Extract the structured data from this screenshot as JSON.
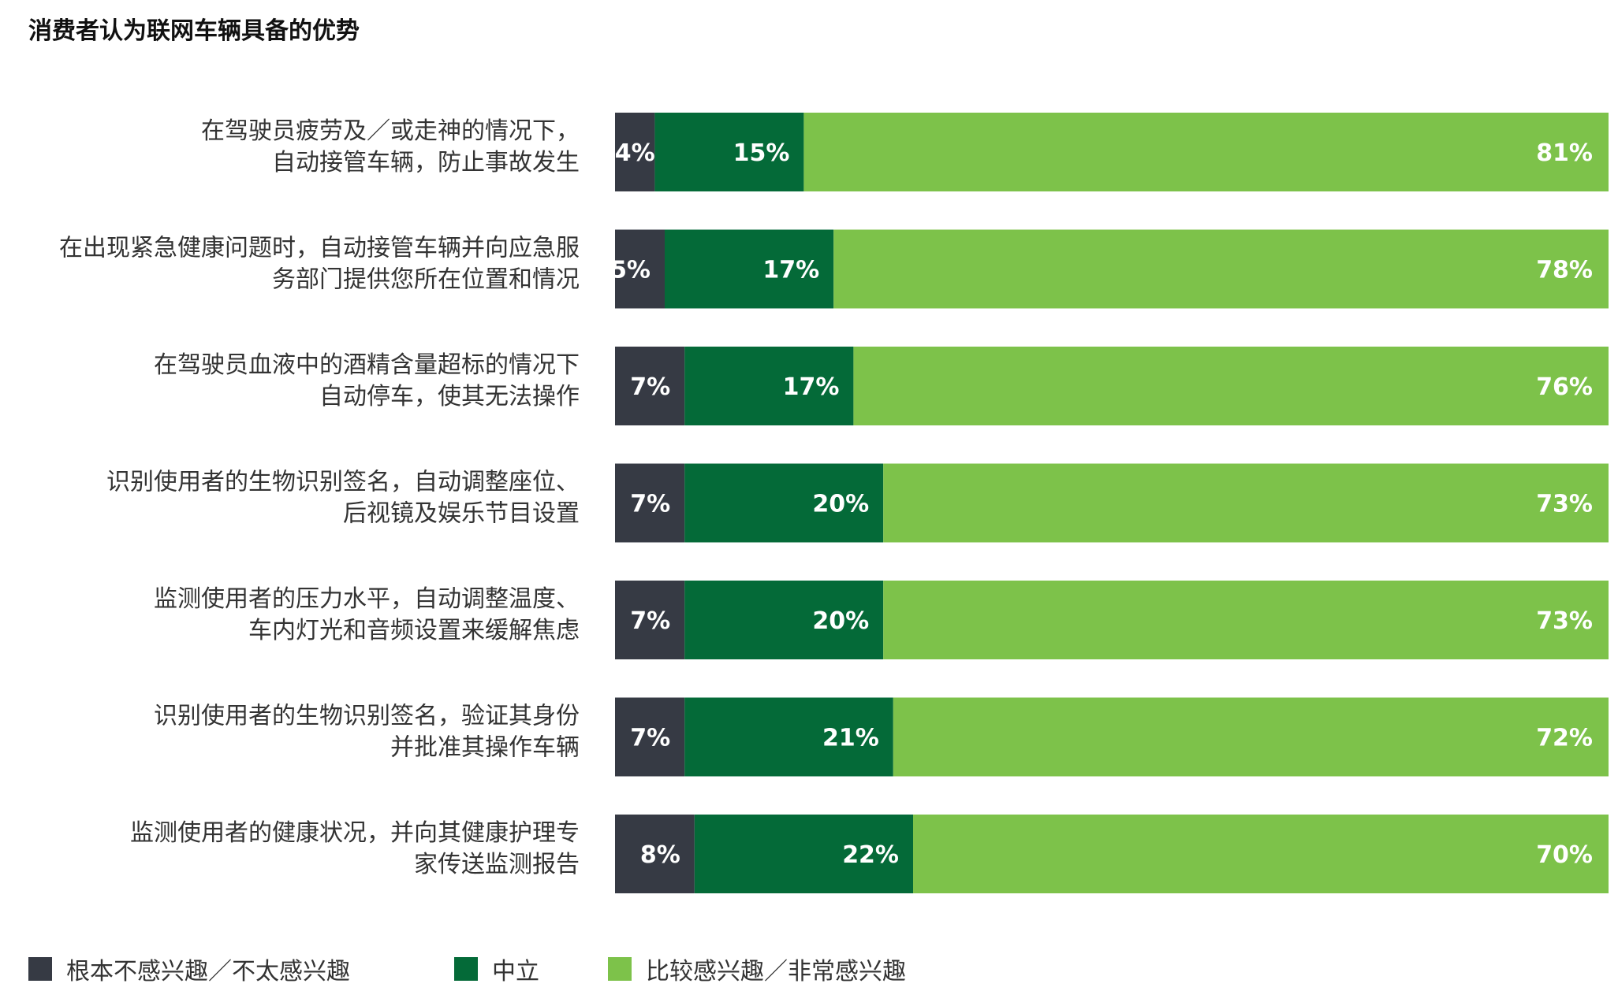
{
  "chart_data": {
    "type": "bar",
    "orientation": "horizontal",
    "stacked": true,
    "title": "消费者认为联网车辆具备的优势",
    "categories": [
      [
        "在驾驶员疲劳及／或走神的情况下，",
        "自动接管车辆，防止事故发生"
      ],
      [
        "在出现紧急健康问题时，自动接管车辆并向应急服",
        "务部门提供您所在位置和情况"
      ],
      [
        "在驾驶员血液中的酒精含量超标的情况下",
        "自动停车，使其无法操作"
      ],
      [
        "识别使用者的生物识别签名，自动调整座位、",
        "后视镜及娱乐节目设置"
      ],
      [
        "监测使用者的压力水平，自动调整温度、",
        "车内灯光和音频设置来缓解焦虑"
      ],
      [
        "识别使用者的生物识别签名，验证其身份",
        "并批准其操作车辆"
      ],
      [
        "监测使用者的健康状况，并向其健康护理专",
        "家传送监测报告"
      ]
    ],
    "series": [
      {
        "name": "根本不感兴趣／不太感兴趣",
        "color": "#363a44",
        "values": [
          4,
          5,
          7,
          7,
          7,
          7,
          8
        ]
      },
      {
        "name": "中立",
        "color": "#046a38",
        "values": [
          15,
          17,
          17,
          20,
          20,
          21,
          22
        ]
      },
      {
        "name": "比较感兴趣／非常感兴趣",
        "color": "#7dc24a",
        "values": [
          81,
          78,
          76,
          73,
          73,
          72,
          70
        ]
      }
    ],
    "value_suffix": "%",
    "xlim": [
      0,
      100
    ],
    "grid": false,
    "legend_position": "bottom-left"
  }
}
